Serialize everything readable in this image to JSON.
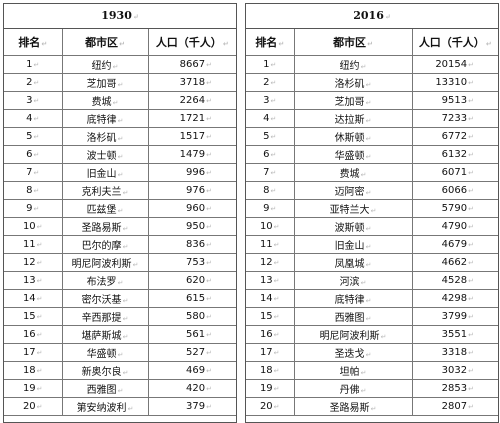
{
  "headers": {
    "rank": "排名",
    "city": "都市区",
    "population": "人口（千人）"
  },
  "mark": "↵",
  "tables": [
    {
      "year": "1930",
      "rows": [
        {
          "rank": "1",
          "city": "纽约",
          "pop": "8667"
        },
        {
          "rank": "2",
          "city": "芝加哥",
          "pop": "3718"
        },
        {
          "rank": "3",
          "city": "费城",
          "pop": "2264"
        },
        {
          "rank": "4",
          "city": "底特律",
          "pop": "1721"
        },
        {
          "rank": "5",
          "city": "洛杉矶",
          "pop": "1517"
        },
        {
          "rank": "6",
          "city": "波士顿",
          "pop": "1479"
        },
        {
          "rank": "7",
          "city": "旧金山",
          "pop": "996"
        },
        {
          "rank": "8",
          "city": "克利夫兰",
          "pop": "976"
        },
        {
          "rank": "9",
          "city": "匹兹堡",
          "pop": "960"
        },
        {
          "rank": "10",
          "city": "圣路易斯",
          "pop": "950"
        },
        {
          "rank": "11",
          "city": "巴尔的摩",
          "pop": "836"
        },
        {
          "rank": "12",
          "city": "明尼阿波利斯",
          "pop": "753"
        },
        {
          "rank": "13",
          "city": "布法罗",
          "pop": "620"
        },
        {
          "rank": "14",
          "city": "密尔沃基",
          "pop": "615"
        },
        {
          "rank": "15",
          "city": "辛西那提",
          "pop": "580"
        },
        {
          "rank": "16",
          "city": "堪萨斯城",
          "pop": "561"
        },
        {
          "rank": "17",
          "city": "华盛顿",
          "pop": "527"
        },
        {
          "rank": "18",
          "city": "新奥尔良",
          "pop": "469"
        },
        {
          "rank": "19",
          "city": "西雅图",
          "pop": "420"
        },
        {
          "rank": "20",
          "city": "第安纳波利",
          "pop": "379"
        }
      ]
    },
    {
      "year": "2016",
      "rows": [
        {
          "rank": "1",
          "city": "纽约",
          "pop": "20154"
        },
        {
          "rank": "2",
          "city": "洛杉矶",
          "pop": "13310"
        },
        {
          "rank": "3",
          "city": "芝加哥",
          "pop": "9513"
        },
        {
          "rank": "4",
          "city": "达拉斯",
          "pop": "7233"
        },
        {
          "rank": "5",
          "city": "休斯顿",
          "pop": "6772"
        },
        {
          "rank": "6",
          "city": "华盛顿",
          "pop": "6132"
        },
        {
          "rank": "7",
          "city": "费城",
          "pop": "6071"
        },
        {
          "rank": "8",
          "city": "迈阿密",
          "pop": "6066"
        },
        {
          "rank": "9",
          "city": "亚特兰大",
          "pop": "5790"
        },
        {
          "rank": "10",
          "city": "波斯顿",
          "pop": "4790"
        },
        {
          "rank": "11",
          "city": "旧金山",
          "pop": "4679"
        },
        {
          "rank": "12",
          "city": "凤凰城",
          "pop": "4662"
        },
        {
          "rank": "13",
          "city": "河滨",
          "pop": "4528"
        },
        {
          "rank": "14",
          "city": "底特律",
          "pop": "4298"
        },
        {
          "rank": "15",
          "city": "西雅图",
          "pop": "3799"
        },
        {
          "rank": "16",
          "city": "明尼阿波利斯",
          "pop": "3551"
        },
        {
          "rank": "17",
          "city": "圣迭戈",
          "pop": "3318"
        },
        {
          "rank": "18",
          "city": "坦帕",
          "pop": "3032"
        },
        {
          "rank": "19",
          "city": "丹佛",
          "pop": "2853"
        },
        {
          "rank": "20",
          "city": "圣路易斯",
          "pop": "2807"
        }
      ]
    }
  ]
}
